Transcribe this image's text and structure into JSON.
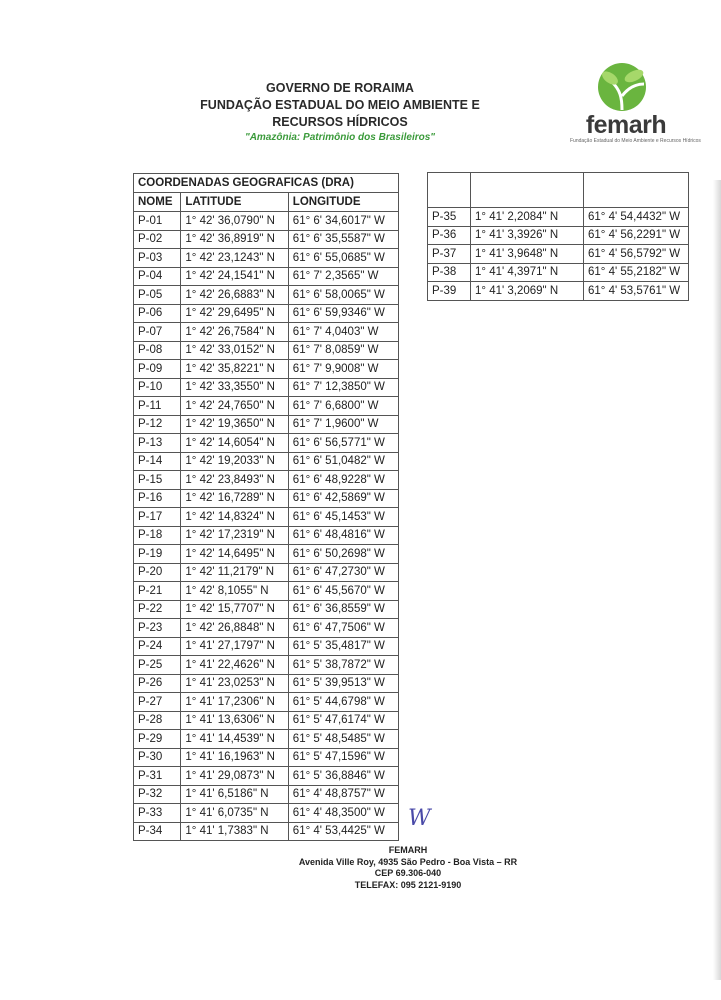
{
  "header": {
    "line1": "GOVERNO DE RORAIMA",
    "line2": "FUNDAÇÃO ESTADUAL DO MEIO AMBIENTE E",
    "line3": "RECURSOS HÍDRICOS",
    "tagline": "\"Amazônia: Patrimônio dos Brasileiros\""
  },
  "logo": {
    "name": "femarh",
    "subtitle": "Fundação Estadual do Meio Ambiente e Recursos Hídricos",
    "colors": [
      "#8cc63f",
      "#2e8b3a"
    ]
  },
  "table": {
    "title": "COORDENADAS GEOGRAFICAS (DRA)",
    "columns": [
      "NOME",
      "LATITUDE",
      "LONGITUDE"
    ],
    "rows": [
      [
        "P-01",
        "1° 42' 36,0790\" N",
        "61° 6' 34,6017\" W"
      ],
      [
        "P-02",
        "1° 42' 36,8919\" N",
        "61° 6' 35,5587\" W"
      ],
      [
        "P-03",
        "1° 42' 23,1243\" N",
        "61° 6' 55,0685\" W"
      ],
      [
        "P-04",
        "1° 42' 24,1541\" N",
        "61° 7' 2,3565\" W"
      ],
      [
        "P-05",
        "1° 42' 26,6883\" N",
        "61° 6' 58,0065\" W"
      ],
      [
        "P-06",
        "1° 42' 29,6495\" N",
        "61° 6' 59,9346\" W"
      ],
      [
        "P-07",
        "1° 42' 26,7584\" N",
        "61° 7' 4,0403\" W"
      ],
      [
        "P-08",
        "1° 42' 33,0152\" N",
        "61° 7' 8,0859\" W"
      ],
      [
        "P-09",
        "1° 42' 35,8221\" N",
        "61° 7' 9,9008\" W"
      ],
      [
        "P-10",
        "1° 42' 33,3550\" N",
        "61° 7' 12,3850\" W"
      ],
      [
        "P-11",
        "1° 42' 24,7650\" N",
        "61° 7' 6,6800\" W"
      ],
      [
        "P-12",
        "1° 42' 19,3650\" N",
        "61° 7' 1,9600\" W"
      ],
      [
        "P-13",
        "1° 42' 14,6054\" N",
        "61° 6' 56,5771\" W"
      ],
      [
        "P-14",
        "1° 42' 19,2033\" N",
        "61° 6' 51,0482\" W"
      ],
      [
        "P-15",
        "1° 42' 23,8493\" N",
        "61° 6' 48,9228\" W"
      ],
      [
        "P-16",
        "1° 42' 16,7289\" N",
        "61° 6' 42,5869\" W"
      ],
      [
        "P-17",
        "1° 42' 14,8324\" N",
        "61° 6' 45,1453\" W"
      ],
      [
        "P-18",
        "1° 42' 17,2319\" N",
        "61° 6' 48,4816\" W"
      ],
      [
        "P-19",
        "1° 42' 14,6495\" N",
        "61° 6' 50,2698\" W"
      ],
      [
        "P-20",
        "1° 42' 11,2179\" N",
        "61° 6' 47,2730\" W"
      ],
      [
        "P-21",
        "1° 42' 8,1055\" N",
        "61° 6' 45,5670\" W"
      ],
      [
        "P-22",
        "1° 42' 15,7707\" N",
        "61° 6' 36,8559\" W"
      ],
      [
        "P-23",
        "1° 42' 26,8848\" N",
        "61° 6' 47,7506\" W"
      ],
      [
        "P-24",
        "1° 41' 27,1797\" N",
        "61° 5' 35,4817\" W"
      ],
      [
        "P-25",
        "1° 41' 22,4626\" N",
        "61° 5' 38,7872\" W"
      ],
      [
        "P-26",
        "1° 41' 23,0253\" N",
        "61° 5' 39,9513\" W"
      ],
      [
        "P-27",
        "1° 41' 17,2306\" N",
        "61° 5' 44,6798\" W"
      ],
      [
        "P-28",
        "1° 41' 13,6306\" N",
        "61° 5' 47,6174\" W"
      ],
      [
        "P-29",
        "1° 41' 14,4539\" N",
        "61° 5' 48,5485\" W"
      ],
      [
        "P-30",
        "1° 41' 16,1963\" N",
        "61° 5' 47,1596\" W"
      ],
      [
        "P-31",
        "1° 41' 29,0873\" N",
        "61° 5' 36,8846\" W"
      ],
      [
        "P-32",
        "1° 41' 6,5186\" N",
        "61° 4' 48,8757\" W"
      ],
      [
        "P-33",
        "1° 41' 6,0735\" N",
        "61° 4' 48,3500\" W"
      ],
      [
        "P-34",
        "1° 41' 1,7383\" N",
        "61° 4' 53,4425\" W"
      ]
    ],
    "rows_continued": [
      [
        "P-35",
        "1° 41' 2,2084\" N",
        "61° 4' 54,4432\" W"
      ],
      [
        "P-36",
        "1° 41' 3,3926\" N",
        "61° 4' 56,2291\" W"
      ],
      [
        "P-37",
        "1° 41' 3,9648\" N",
        "61° 4' 56,5792\" W"
      ],
      [
        "P-38",
        "1° 41' 4,3971\" N",
        "61° 4' 55,2182\" W"
      ],
      [
        "P-39",
        "1° 41' 3,2069\" N",
        "61° 4' 53,5761\" W"
      ]
    ]
  },
  "signature": "W",
  "footer": {
    "org": "FEMARH",
    "address": "Avenida Ville Roy, 4935 São Pedro - Boa Vista – RR",
    "cep": "CEP 69.306-040",
    "phone": "TELEFAX: 095 2121-9190"
  }
}
